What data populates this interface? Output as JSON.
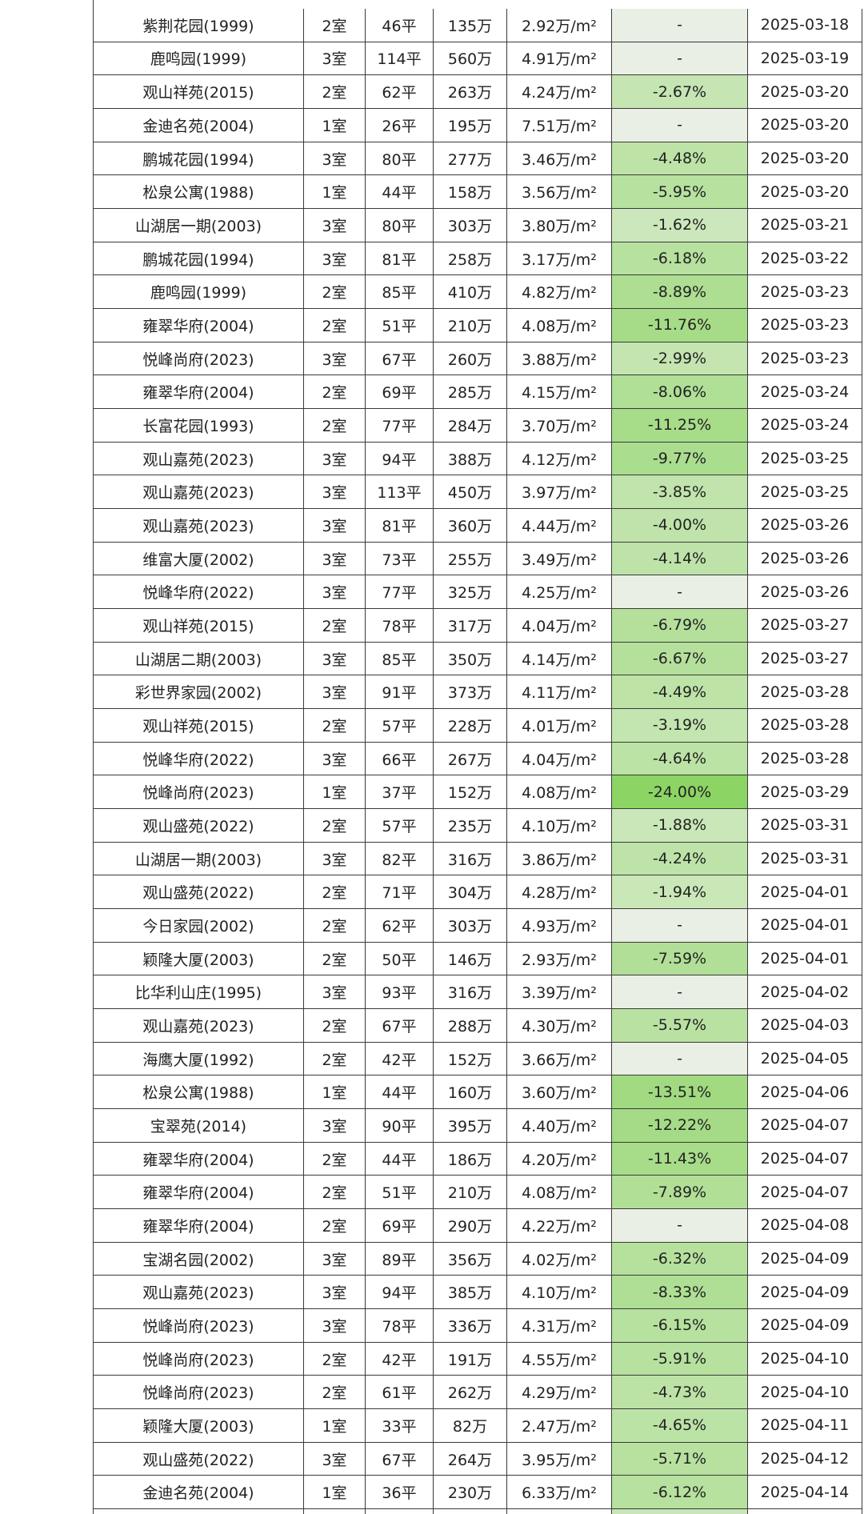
{
  "table": {
    "rows": [
      [
        "紫荆花园(1999)",
        "2室",
        "46平",
        "135万",
        "2.92万/m²",
        "-",
        "2025-03-18"
      ],
      [
        "鹿鸣园(1999)",
        "3室",
        "114平",
        "560万",
        "4.91万/m²",
        "-",
        "2025-03-19"
      ],
      [
        "观山祥苑(2015)",
        "2室",
        "62平",
        "263万",
        "4.24万/m²",
        "-2.67%",
        "2025-03-20"
      ],
      [
        "金迪名苑(2004)",
        "1室",
        "26平",
        "195万",
        "7.51万/m²",
        "-",
        "2025-03-20"
      ],
      [
        "鹏城花园(1994)",
        "3室",
        "80平",
        "277万",
        "3.46万/m²",
        "-4.48%",
        "2025-03-20"
      ],
      [
        "松泉公寓(1988)",
        "1室",
        "44平",
        "158万",
        "3.56万/m²",
        "-5.95%",
        "2025-03-20"
      ],
      [
        "山湖居一期(2003)",
        "3室",
        "80平",
        "303万",
        "3.80万/m²",
        "-1.62%",
        "2025-03-21"
      ],
      [
        "鹏城花园(1994)",
        "3室",
        "81平",
        "258万",
        "3.17万/m²",
        "-6.18%",
        "2025-03-22"
      ],
      [
        "鹿鸣园(1999)",
        "2室",
        "85平",
        "410万",
        "4.82万/m²",
        "-8.89%",
        "2025-03-23"
      ],
      [
        "雍翠华府(2004)",
        "2室",
        "51平",
        "210万",
        "4.08万/m²",
        "-11.76%",
        "2025-03-23"
      ],
      [
        "悦峰尚府(2023)",
        "3室",
        "67平",
        "260万",
        "3.88万/m²",
        "-2.99%",
        "2025-03-23"
      ],
      [
        "雍翠华府(2004)",
        "2室",
        "69平",
        "285万",
        "4.15万/m²",
        "-8.06%",
        "2025-03-24"
      ],
      [
        "长富花园(1993)",
        "2室",
        "77平",
        "284万",
        "3.70万/m²",
        "-11.25%",
        "2025-03-24"
      ],
      [
        "观山嘉苑(2023)",
        "3室",
        "94平",
        "388万",
        "4.12万/m²",
        "-9.77%",
        "2025-03-25"
      ],
      [
        "观山嘉苑(2023)",
        "3室",
        "113平",
        "450万",
        "3.97万/m²",
        "-3.85%",
        "2025-03-25"
      ],
      [
        "观山嘉苑(2023)",
        "3室",
        "81平",
        "360万",
        "4.44万/m²",
        "-4.00%",
        "2025-03-26"
      ],
      [
        "维富大厦(2002)",
        "3室",
        "73平",
        "255万",
        "3.49万/m²",
        "-4.14%",
        "2025-03-26"
      ],
      [
        "悦峰华府(2022)",
        "3室",
        "77平",
        "325万",
        "4.25万/m²",
        "-",
        "2025-03-26"
      ],
      [
        "观山祥苑(2015)",
        "2室",
        "78平",
        "317万",
        "4.04万/m²",
        "-6.79%",
        "2025-03-27"
      ],
      [
        "山湖居二期(2003)",
        "3室",
        "85平",
        "350万",
        "4.14万/m²",
        "-6.67%",
        "2025-03-27"
      ],
      [
        "彩世界家园(2002)",
        "3室",
        "91平",
        "373万",
        "4.11万/m²",
        "-4.49%",
        "2025-03-28"
      ],
      [
        "观山祥苑(2015)",
        "2室",
        "57平",
        "228万",
        "4.01万/m²",
        "-3.19%",
        "2025-03-28"
      ],
      [
        "悦峰华府(2022)",
        "3室",
        "66平",
        "267万",
        "4.04万/m²",
        "-4.64%",
        "2025-03-28"
      ],
      [
        "悦峰尚府(2023)",
        "1室",
        "37平",
        "152万",
        "4.08万/m²",
        "-24.00%",
        "2025-03-29"
      ],
      [
        "观山盛苑(2022)",
        "2室",
        "57平",
        "235万",
        "4.10万/m²",
        "-1.88%",
        "2025-03-31"
      ],
      [
        "山湖居一期(2003)",
        "3室",
        "82平",
        "316万",
        "3.86万/m²",
        "-4.24%",
        "2025-03-31"
      ],
      [
        "观山盛苑(2022)",
        "2室",
        "71平",
        "304万",
        "4.28万/m²",
        "-1.94%",
        "2025-04-01"
      ],
      [
        "今日家园(2002)",
        "2室",
        "62平",
        "303万",
        "4.93万/m²",
        "-",
        "2025-04-01"
      ],
      [
        "颖隆大厦(2003)",
        "2室",
        "50平",
        "146万",
        "2.93万/m²",
        "-7.59%",
        "2025-04-01"
      ],
      [
        "比华利山庄(1995)",
        "3室",
        "93平",
        "316万",
        "3.39万/m²",
        "-",
        "2025-04-02"
      ],
      [
        "观山嘉苑(2023)",
        "2室",
        "67平",
        "288万",
        "4.30万/m²",
        "-5.57%",
        "2025-04-03"
      ],
      [
        "海鹰大厦(1992)",
        "2室",
        "42平",
        "152万",
        "3.66万/m²",
        "-",
        "2025-04-05"
      ],
      [
        "松泉公寓(1988)",
        "1室",
        "44平",
        "160万",
        "3.60万/m²",
        "-13.51%",
        "2025-04-06"
      ],
      [
        "宝翠苑(2014)",
        "3室",
        "90平",
        "395万",
        "4.40万/m²",
        "-12.22%",
        "2025-04-07"
      ],
      [
        "雍翠华府(2004)",
        "2室",
        "44平",
        "186万",
        "4.20万/m²",
        "-11.43%",
        "2025-04-07"
      ],
      [
        "雍翠华府(2004)",
        "2室",
        "51平",
        "210万",
        "4.08万/m²",
        "-7.89%",
        "2025-04-07"
      ],
      [
        "雍翠华府(2004)",
        "2室",
        "69平",
        "290万",
        "4.22万/m²",
        "-",
        "2025-04-08"
      ],
      [
        "宝湖名园(2002)",
        "3室",
        "89平",
        "356万",
        "4.02万/m²",
        "-6.32%",
        "2025-04-09"
      ],
      [
        "观山嘉苑(2023)",
        "3室",
        "94平",
        "385万",
        "4.10万/m²",
        "-8.33%",
        "2025-04-09"
      ],
      [
        "悦峰尚府(2023)",
        "3室",
        "78平",
        "336万",
        "4.31万/m²",
        "-6.15%",
        "2025-04-09"
      ],
      [
        "悦峰尚府(2023)",
        "2室",
        "42平",
        "191万",
        "4.55万/m²",
        "-5.91%",
        "2025-04-10"
      ],
      [
        "悦峰尚府(2023)",
        "2室",
        "61平",
        "262万",
        "4.29万/m²",
        "-4.73%",
        "2025-04-10"
      ],
      [
        "颖隆大厦(2003)",
        "1室",
        "33平",
        "82万",
        "2.47万/m²",
        "-4.65%",
        "2025-04-11"
      ],
      [
        "观山盛苑(2022)",
        "3室",
        "67平",
        "264万",
        "3.95万/m²",
        "-5.71%",
        "2025-04-12"
      ],
      [
        "金迪名苑(2004)",
        "1室",
        "36平",
        "230万",
        "6.33万/m²",
        "-6.12%",
        "2025-04-14"
      ]
    ]
  }
}
